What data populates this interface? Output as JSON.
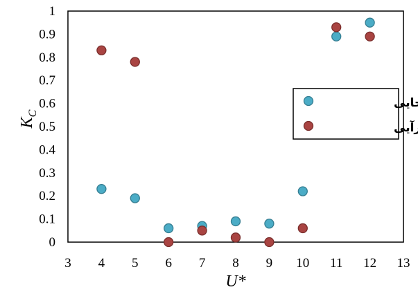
{
  "chart_data": {
    "type": "scatter",
    "xlim": [
      3,
      13
    ],
    "ylim": [
      0,
      1
    ],
    "x_ticks": [
      3,
      4,
      5,
      6,
      7,
      8,
      9,
      10,
      11,
      12,
      13
    ],
    "y_ticks": [
      0,
      0.1,
      0.2,
      0.3,
      0.4,
      0.5,
      0.6,
      0.7,
      0.8,
      0.9,
      1
    ],
    "xlabel": "U*",
    "ylabel": "K_C",
    "grid": false,
    "legend_position": "right",
    "series": [
      {
        "name": "جابه جایی",
        "color": "#4BACC6",
        "edge_color": "#357D91",
        "x": [
          4,
          5,
          6,
          7,
          8,
          9,
          10,
          11,
          12
        ],
        "y": [
          0.23,
          0.19,
          0.06,
          0.07,
          0.09,
          0.08,
          0.22,
          0.89,
          0.95
        ]
      },
      {
        "name": "نیروی برآیی",
        "color": "#A94442",
        "edge_color": "#7A2E2C",
        "x": [
          4,
          5,
          6,
          7,
          8,
          9,
          10,
          11,
          12
        ],
        "y": [
          0.83,
          0.78,
          0.0,
          0.05,
          0.02,
          0.0,
          0.06,
          0.93,
          0.89
        ]
      }
    ]
  }
}
